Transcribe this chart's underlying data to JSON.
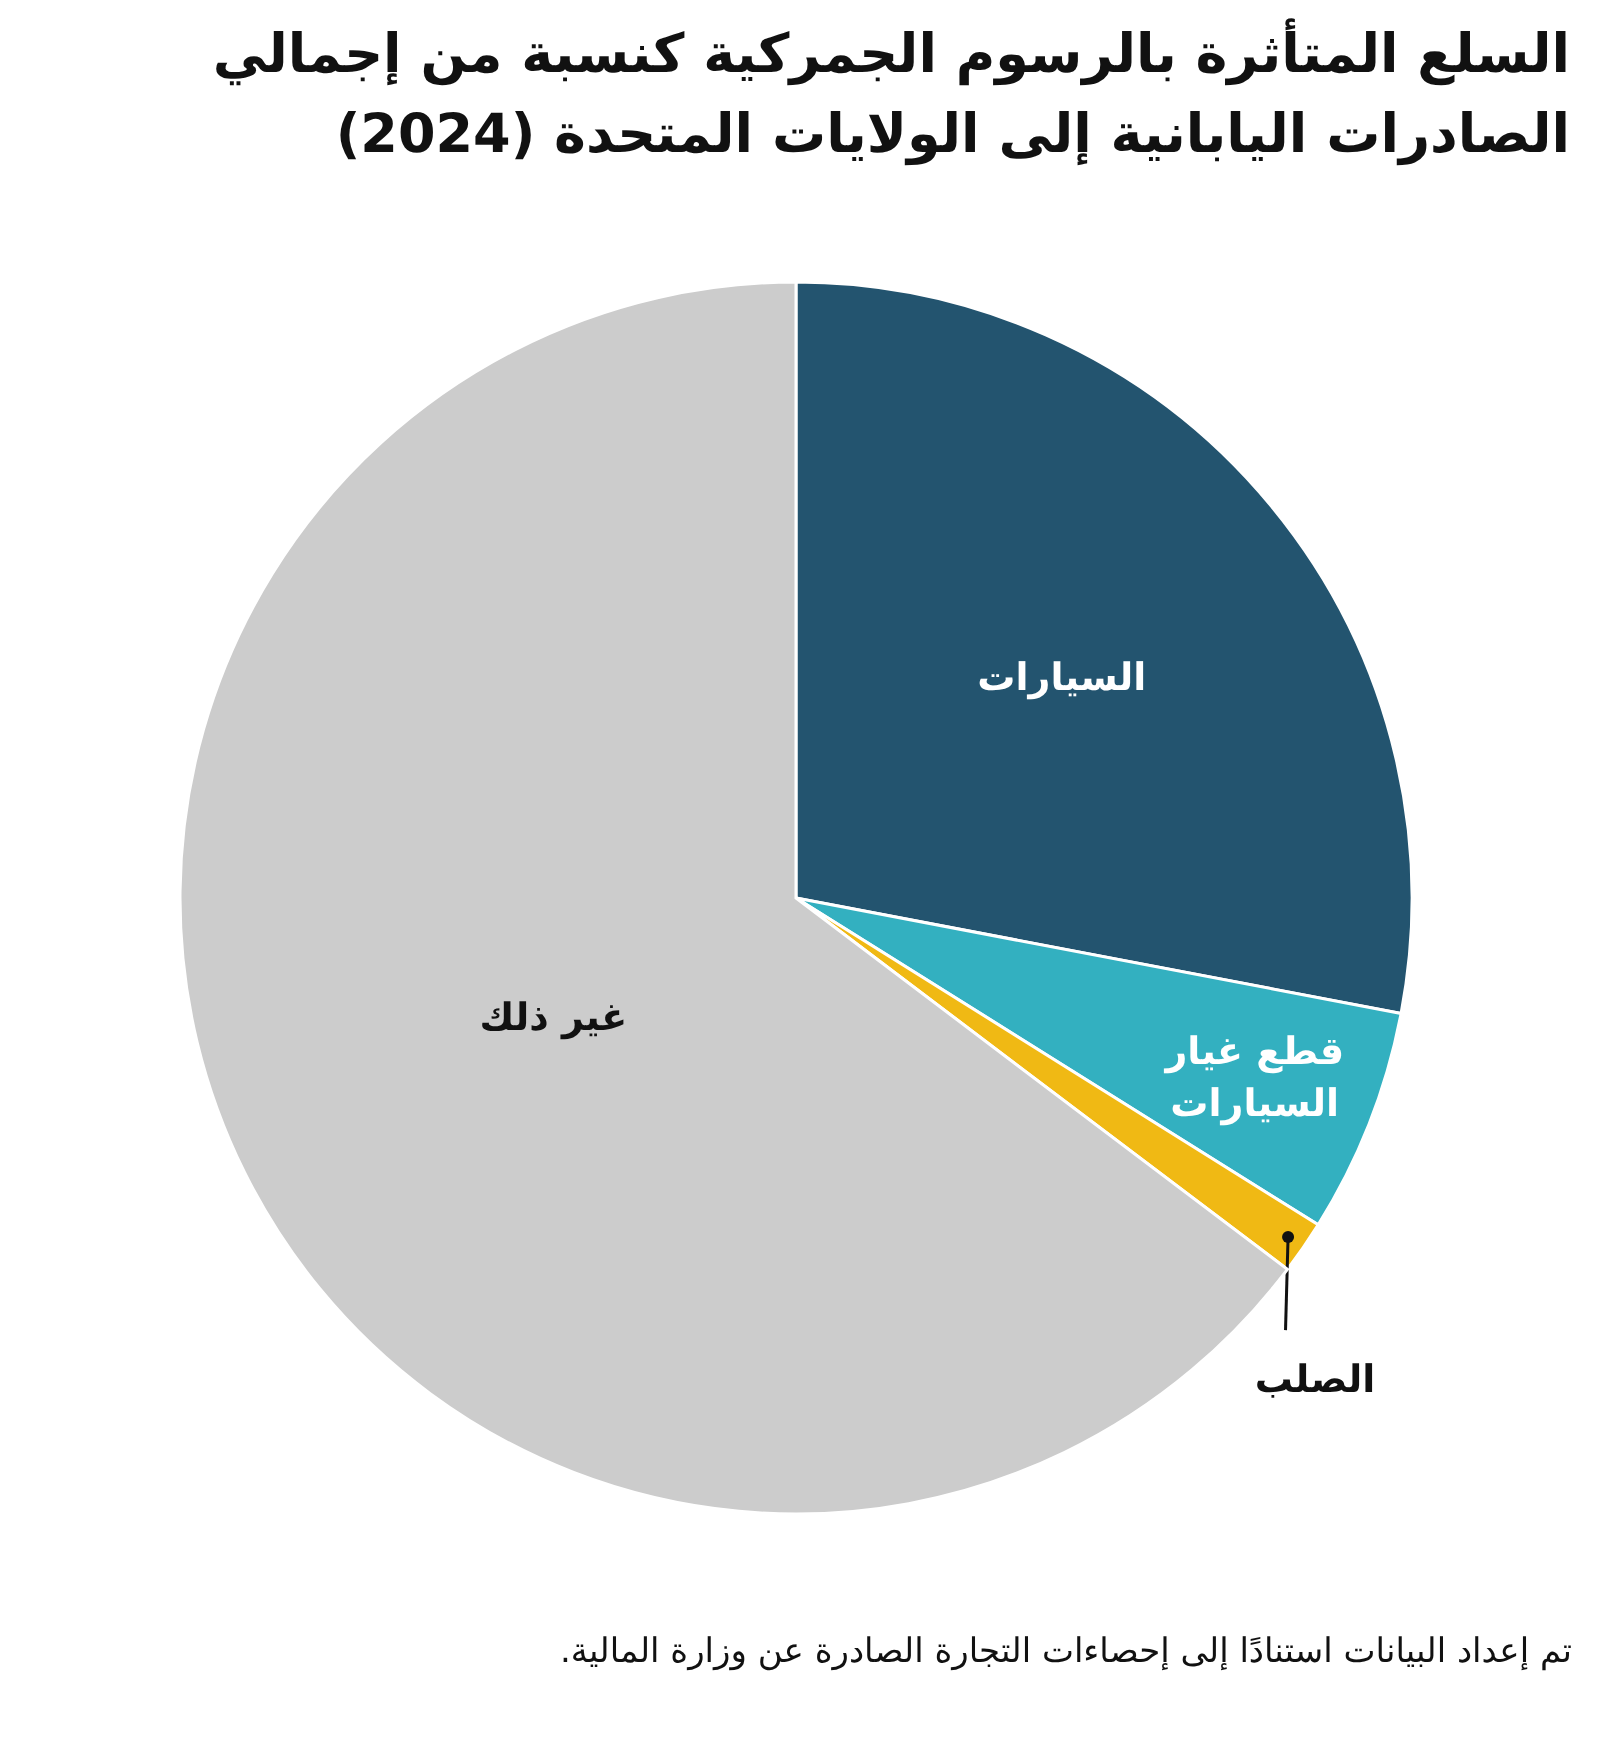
{
  "chart_data": {
    "type": "pie",
    "title": "السلع المتأثرة بالرسوم الجمركية كنسبة من إجمالي الصادرات اليابانية إلى الولايات المتحدة (2024)",
    "categories": [
      "السيارات",
      "قطع غيار السيارات",
      "الصلب",
      "غير ذلك"
    ],
    "values": [
      28.0,
      5.9,
      1.4,
      64.7
    ],
    "colors": [
      "#23546f",
      "#33b0c0",
      "#f0b914",
      "#cccccc"
    ],
    "annotations": [
      "تم إعداد البيانات استنادًا إلى إحصاءات التجارة الصادرة عن وزارة المالية."
    ]
  }
}
